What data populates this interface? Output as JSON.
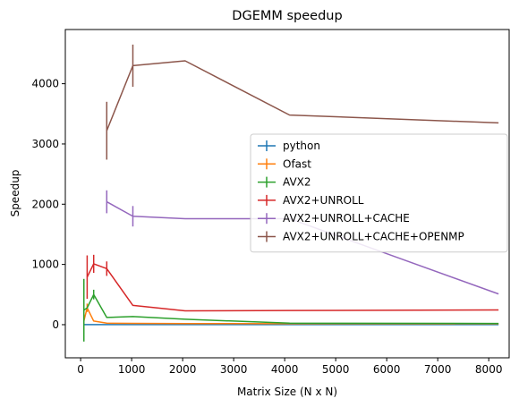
{
  "chart_data": {
    "type": "line",
    "title": "DGEMM speedup",
    "xlabel": "Matrix Size (N x N)",
    "ylabel": "Speedup",
    "xlim": [
      -300,
      8400
    ],
    "ylim": [
      -550,
      4900
    ],
    "xticks": [
      0,
      1000,
      2000,
      3000,
      4000,
      5000,
      6000,
      7000,
      8000
    ],
    "yticks": [
      0,
      1000,
      2000,
      3000,
      4000
    ],
    "grid": false,
    "legend_position": "center-right",
    "series": [
      {
        "name": "python",
        "color": "#1f77b4",
        "points": [
          {
            "x": 64,
            "y": 1,
            "err": 0
          },
          {
            "x": 128,
            "y": 1,
            "err": 0
          },
          {
            "x": 256,
            "y": 1,
            "err": 0
          },
          {
            "x": 512,
            "y": 1,
            "err": 0
          },
          {
            "x": 1024,
            "y": 1,
            "err": 0
          },
          {
            "x": 2048,
            "y": 1,
            "err": 0
          },
          {
            "x": 4096,
            "y": 1,
            "err": 0
          },
          {
            "x": 8192,
            "y": 1,
            "err": 0
          }
        ]
      },
      {
        "name": "Ofast",
        "color": "#ff7f0e",
        "points": [
          {
            "x": 64,
            "y": 60,
            "err": 0
          },
          {
            "x": 128,
            "y": 280,
            "err": 70
          },
          {
            "x": 256,
            "y": 60,
            "err": 0
          },
          {
            "x": 512,
            "y": 25,
            "err": 0
          },
          {
            "x": 1024,
            "y": 22,
            "err": 0
          },
          {
            "x": 2048,
            "y": 18,
            "err": 0
          },
          {
            "x": 4096,
            "y": 16,
            "err": 0
          },
          {
            "x": 8192,
            "y": 15,
            "err": 0
          }
        ]
      },
      {
        "name": "AVX2",
        "color": "#2ca02c",
        "points": [
          {
            "x": 64,
            "y": 240,
            "err": 520
          },
          {
            "x": 128,
            "y": 280,
            "err": 0
          },
          {
            "x": 256,
            "y": 500,
            "err": 80
          },
          {
            "x": 512,
            "y": 120,
            "err": 0
          },
          {
            "x": 1024,
            "y": 135,
            "err": 0
          },
          {
            "x": 2048,
            "y": 90,
            "err": 0
          },
          {
            "x": 4096,
            "y": 25,
            "err": 0
          },
          {
            "x": 8192,
            "y": 20,
            "err": 0
          }
        ]
      },
      {
        "name": "AVX2+UNROLL",
        "color": "#d62728",
        "points": [
          {
            "x": 128,
            "y": 790,
            "err": 360
          },
          {
            "x": 256,
            "y": 1010,
            "err": 150
          },
          {
            "x": 512,
            "y": 930,
            "err": 120
          },
          {
            "x": 1024,
            "y": 320,
            "err": 0
          },
          {
            "x": 2048,
            "y": 230,
            "err": 0
          },
          {
            "x": 4096,
            "y": 235,
            "err": 0
          },
          {
            "x": 8192,
            "y": 245,
            "err": 0
          }
        ]
      },
      {
        "name": "AVX2+UNROLL+CACHE",
        "color": "#9467bd",
        "points": [
          {
            "x": 512,
            "y": 2040,
            "err": 190
          },
          {
            "x": 1024,
            "y": 1800,
            "err": 170
          },
          {
            "x": 2048,
            "y": 1760,
            "err": 0
          },
          {
            "x": 4096,
            "y": 1760,
            "err": 0
          },
          {
            "x": 8192,
            "y": 510,
            "err": 0
          }
        ]
      },
      {
        "name": "AVX2+UNROLL+CACHE+OPENMP",
        "color": "#8c564b",
        "points": [
          {
            "x": 512,
            "y": 3220,
            "err": 480
          },
          {
            "x": 1024,
            "y": 4300,
            "err": 350
          },
          {
            "x": 2048,
            "y": 4380,
            "err": 0
          },
          {
            "x": 4096,
            "y": 3480,
            "err": 0
          },
          {
            "x": 8192,
            "y": 3350,
            "err": 0
          }
        ]
      }
    ]
  }
}
